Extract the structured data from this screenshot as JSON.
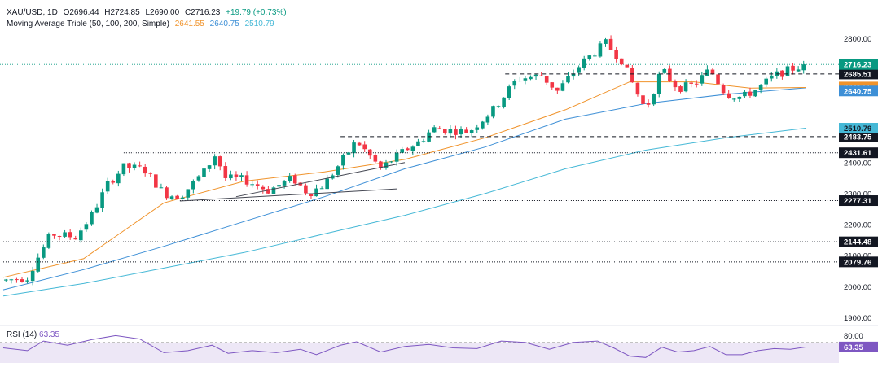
{
  "legend": {
    "symbol": "XAU/USD, 1D",
    "open": "O2696.44",
    "high": "H2724.85",
    "low": "L2690.00",
    "close": "C2716.23",
    "change": "+19.79 (+0.73%)",
    "ma_label": "Moving Average Triple (50, 100, 200, Simple)",
    "ma50_value": "2641.55",
    "ma100_value": "2640.75",
    "ma200_value": "2510.79"
  },
  "rsi": {
    "label": "RSI (14)",
    "value": "63.35"
  },
  "colors": {
    "up": "#089981",
    "down": "#f23645",
    "ma50": "#f0932b",
    "ma100": "#3d8fd6",
    "ma200": "#45b8d6",
    "rsi_line": "#7e57c2",
    "rsi_band": "#ede7f6"
  },
  "chart_data": {
    "type": "candlestick",
    "title": "XAU/USD, 1D",
    "ylim": [
      1880,
      2840
    ],
    "price_ticks": [
      "2800.00",
      "2400.00",
      "2300.00",
      "2200.00",
      "2100.00",
      "2000.00",
      "1900.00"
    ],
    "rsi_ticks": [
      "80.00"
    ],
    "current_price": 2716.23,
    "current_price_label": "2716.23",
    "ma_labels": [
      {
        "name": "SMA 50",
        "value": 2641.55,
        "text": "2641.55",
        "color": "#f0932b"
      },
      {
        "name": "SMA 100",
        "value": 2640.75,
        "text": "2640.75",
        "color": "#3d8fd6"
      },
      {
        "name": "SMA 200",
        "value": 2510.79,
        "text": "2510.79",
        "color": "#45b8d6"
      }
    ],
    "levels": [
      {
        "value": 2685.51,
        "label": "2685.51",
        "style": "dashed",
        "x_start": 0.625
      },
      {
        "value": 2483.75,
        "label": "2483.75",
        "style": "dashed",
        "x_start": 0.42
      },
      {
        "value": 2431.61,
        "label": "2431.61",
        "style": "dotted",
        "x_start": 0.15
      },
      {
        "value": 2277.31,
        "label": "2277.31",
        "style": "dotted",
        "x_start": 0.22
      },
      {
        "value": 2144.48,
        "label": "2144.48",
        "style": "dotted",
        "x_start": 0.0
      },
      {
        "value": 2079.76,
        "label": "2079.76",
        "style": "dotted",
        "x_start": 0.0
      }
    ],
    "trendlines": [
      {
        "from": [
          0.22,
          2276
        ],
        "to": [
          0.49,
          2315
        ]
      },
      {
        "from": [
          0.29,
          2290
        ],
        "to": [
          0.5,
          2400
        ]
      }
    ],
    "anchors": [
      [
        0.0,
        2020
      ],
      [
        0.03,
        2030
      ],
      [
        0.04,
        2080
      ],
      [
        0.06,
        2170
      ],
      [
        0.09,
        2160
      ],
      [
        0.11,
        2230
      ],
      [
        0.13,
        2330
      ],
      [
        0.15,
        2385
      ],
      [
        0.175,
        2380
      ],
      [
        0.2,
        2300
      ],
      [
        0.22,
        2290
      ],
      [
        0.25,
        2370
      ],
      [
        0.265,
        2430
      ],
      [
        0.275,
        2350
      ],
      [
        0.3,
        2345
      ],
      [
        0.33,
        2310
      ],
      [
        0.36,
        2350
      ],
      [
        0.38,
        2300
      ],
      [
        0.4,
        2330
      ],
      [
        0.42,
        2400
      ],
      [
        0.44,
        2470
      ],
      [
        0.47,
        2380
      ],
      [
        0.5,
        2440
      ],
      [
        0.52,
        2470
      ],
      [
        0.535,
        2510
      ],
      [
        0.55,
        2505
      ],
      [
        0.58,
        2500
      ],
      [
        0.61,
        2570
      ],
      [
        0.64,
        2670
      ],
      [
        0.67,
        2680
      ],
      [
        0.69,
        2630
      ],
      [
        0.72,
        2720
      ],
      [
        0.75,
        2785
      ],
      [
        0.77,
        2730
      ],
      [
        0.79,
        2620
      ],
      [
        0.8,
        2570
      ],
      [
        0.82,
        2700
      ],
      [
        0.84,
        2640
      ],
      [
        0.86,
        2650
      ],
      [
        0.88,
        2700
      ],
      [
        0.9,
        2620
      ],
      [
        0.92,
        2610
      ],
      [
        0.94,
        2640
      ],
      [
        0.96,
        2680
      ],
      [
        0.98,
        2700
      ],
      [
        1.0,
        2716
      ]
    ],
    "ma50": [
      [
        0.0,
        2030
      ],
      [
        0.1,
        2090
      ],
      [
        0.2,
        2270
      ],
      [
        0.3,
        2340
      ],
      [
        0.4,
        2370
      ],
      [
        0.5,
        2410
      ],
      [
        0.6,
        2480
      ],
      [
        0.7,
        2570
      ],
      [
        0.78,
        2660
      ],
      [
        0.86,
        2660
      ],
      [
        0.93,
        2640
      ],
      [
        1.0,
        2642
      ]
    ],
    "ma100": [
      [
        0.0,
        1990
      ],
      [
        0.1,
        2055
      ],
      [
        0.2,
        2130
      ],
      [
        0.3,
        2210
      ],
      [
        0.4,
        2290
      ],
      [
        0.5,
        2380
      ],
      [
        0.6,
        2450
      ],
      [
        0.7,
        2540
      ],
      [
        0.8,
        2590
      ],
      [
        0.9,
        2620
      ],
      [
        1.0,
        2641
      ]
    ],
    "ma200": [
      [
        0.0,
        1970
      ],
      [
        0.1,
        2010
      ],
      [
        0.2,
        2060
      ],
      [
        0.3,
        2110
      ],
      [
        0.4,
        2170
      ],
      [
        0.5,
        2230
      ],
      [
        0.6,
        2300
      ],
      [
        0.7,
        2380
      ],
      [
        0.8,
        2440
      ],
      [
        0.9,
        2480
      ],
      [
        1.0,
        2511
      ]
    ],
    "rsi_ylim": [
      40,
      90
    ],
    "rsi_band": [
      30,
      70
    ],
    "rsi_points": [
      [
        0.0,
        62
      ],
      [
        0.03,
        58
      ],
      [
        0.05,
        72
      ],
      [
        0.08,
        66
      ],
      [
        0.11,
        74
      ],
      [
        0.14,
        80
      ],
      [
        0.17,
        75
      ],
      [
        0.2,
        55
      ],
      [
        0.23,
        58
      ],
      [
        0.26,
        66
      ],
      [
        0.28,
        54
      ],
      [
        0.31,
        58
      ],
      [
        0.34,
        55
      ],
      [
        0.37,
        60
      ],
      [
        0.39,
        52
      ],
      [
        0.42,
        66
      ],
      [
        0.44,
        71
      ],
      [
        0.47,
        56
      ],
      [
        0.5,
        64
      ],
      [
        0.53,
        67
      ],
      [
        0.56,
        62
      ],
      [
        0.59,
        61
      ],
      [
        0.62,
        72
      ],
      [
        0.65,
        70
      ],
      [
        0.68,
        60
      ],
      [
        0.71,
        70
      ],
      [
        0.74,
        72
      ],
      [
        0.76,
        62
      ],
      [
        0.78,
        50
      ],
      [
        0.8,
        48
      ],
      [
        0.82,
        63
      ],
      [
        0.84,
        56
      ],
      [
        0.86,
        58
      ],
      [
        0.88,
        64
      ],
      [
        0.9,
        52
      ],
      [
        0.92,
        52
      ],
      [
        0.94,
        58
      ],
      [
        0.96,
        61
      ],
      [
        0.98,
        60
      ],
      [
        1.0,
        63.35
      ]
    ]
  }
}
